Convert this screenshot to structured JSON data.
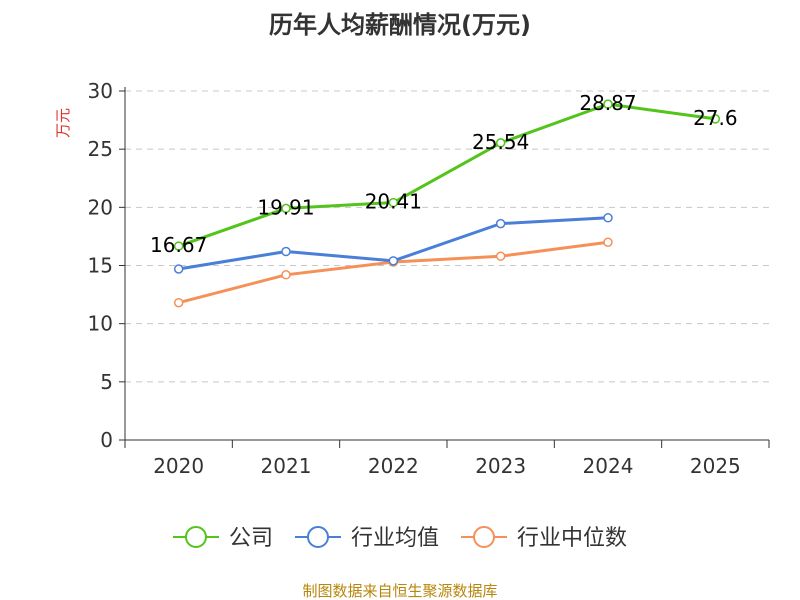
{
  "chart_data": {
    "type": "line",
    "title": "历年人均薪酬情况(万元)",
    "ylabel": "万元",
    "xlabel": "",
    "ylim": [
      0,
      30
    ],
    "yticks": [
      0,
      5,
      10,
      15,
      20,
      25,
      30
    ],
    "categories": [
      "2020",
      "2021",
      "2022",
      "2023",
      "2024",
      "2025"
    ],
    "series": [
      {
        "name": "公司",
        "color": "#52c41a",
        "values": [
          16.67,
          19.91,
          20.41,
          25.54,
          28.87,
          27.6
        ],
        "labels": [
          "16.67",
          "19.91",
          "20.41",
          "25.54",
          "28.87",
          "27.6"
        ]
      },
      {
        "name": "行业均值",
        "color": "#4a7fd8",
        "values": [
          14.7,
          16.2,
          15.4,
          18.6,
          19.1,
          null
        ]
      },
      {
        "name": "行业中位数",
        "color": "#f59058",
        "values": [
          11.8,
          14.2,
          15.3,
          15.8,
          17.0,
          null
        ]
      }
    ],
    "grid": true,
    "legend": "bottom-center",
    "source": "制图数据来自恒生聚源数据库"
  }
}
